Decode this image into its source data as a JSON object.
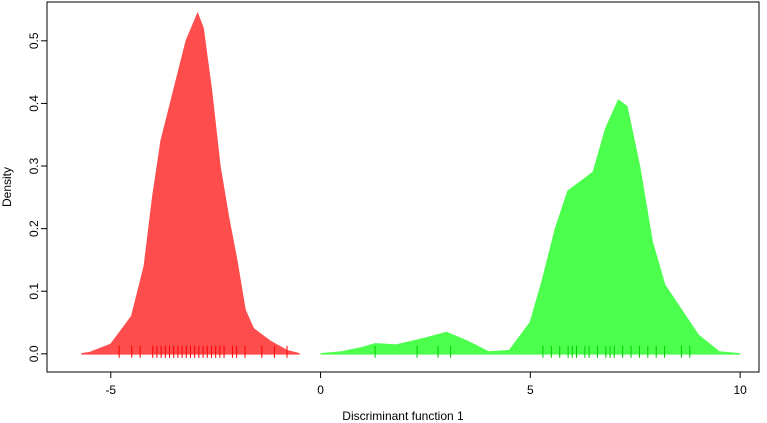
{
  "chart_data": {
    "type": "density",
    "x_label": "Discriminant function 1",
    "y_label": "Density",
    "xlim": [
      -6.52,
      10.45
    ],
    "ylim": [
      -0.029,
      0.562
    ],
    "xticks": [
      -5,
      0,
      5,
      10
    ],
    "yticks": [
      {
        "value": 0,
        "label": "0.0"
      },
      0.1,
      0.2,
      0.3,
      0.4,
      0.5
    ],
    "grid": false,
    "series": [
      {
        "color": "#ff4c4c",
        "rug_color": "#ff0000",
        "x": [
          -5.7,
          -5.5,
          -5,
          -4.5,
          -4.2,
          -4,
          -3.8,
          -3.5,
          -3.2,
          -2.93,
          -2.8,
          -2.6,
          -2.4,
          -2.2,
          -2,
          -1.8,
          -1.6,
          -1.2,
          -0.8,
          -0.5
        ],
        "values": [
          0,
          0.002,
          0.015,
          0.06,
          0.14,
          0.25,
          0.34,
          0.42,
          0.5,
          0.543,
          0.52,
          0.42,
          0.3,
          0.22,
          0.15,
          0.07,
          0.04,
          0.02,
          0.005,
          0
        ],
        "rug": [
          -4.8,
          -4.5,
          -4.3,
          -4.0,
          -3.9,
          -3.8,
          -3.7,
          -3.6,
          -3.5,
          -3.4,
          -3.3,
          -3.2,
          -3.1,
          -3.0,
          -2.9,
          -2.8,
          -2.7,
          -2.6,
          -2.5,
          -2.4,
          -2.3,
          -2.1,
          -2.0,
          -1.8,
          -1.4,
          -1.1,
          -0.8
        ]
      },
      {
        "color": "#4cff4c",
        "rug_color": "#00cc00",
        "x": [
          0,
          0.5,
          1,
          1.3,
          1.8,
          2.5,
          3,
          3.5,
          4,
          4.5,
          5,
          5.3,
          5.6,
          5.9,
          6.2,
          6.5,
          6.8,
          7.1,
          7.3,
          7.6,
          7.9,
          8.2,
          8.6,
          9,
          9.5,
          10
        ],
        "values": [
          0,
          0.003,
          0.01,
          0.016,
          0.014,
          0.025,
          0.034,
          0.02,
          0.003,
          0.005,
          0.05,
          0.12,
          0.2,
          0.26,
          0.275,
          0.29,
          0.36,
          0.405,
          0.395,
          0.3,
          0.18,
          0.11,
          0.07,
          0.03,
          0.003,
          0
        ],
        "rug": [
          1.3,
          2.3,
          2.8,
          3.1,
          5.3,
          5.5,
          5.7,
          5.9,
          6.0,
          6.1,
          6.3,
          6.4,
          6.6,
          6.8,
          6.9,
          7.0,
          7.2,
          7.4,
          7.6,
          7.8,
          8.0,
          8.2,
          8.6,
          8.8
        ]
      }
    ]
  }
}
